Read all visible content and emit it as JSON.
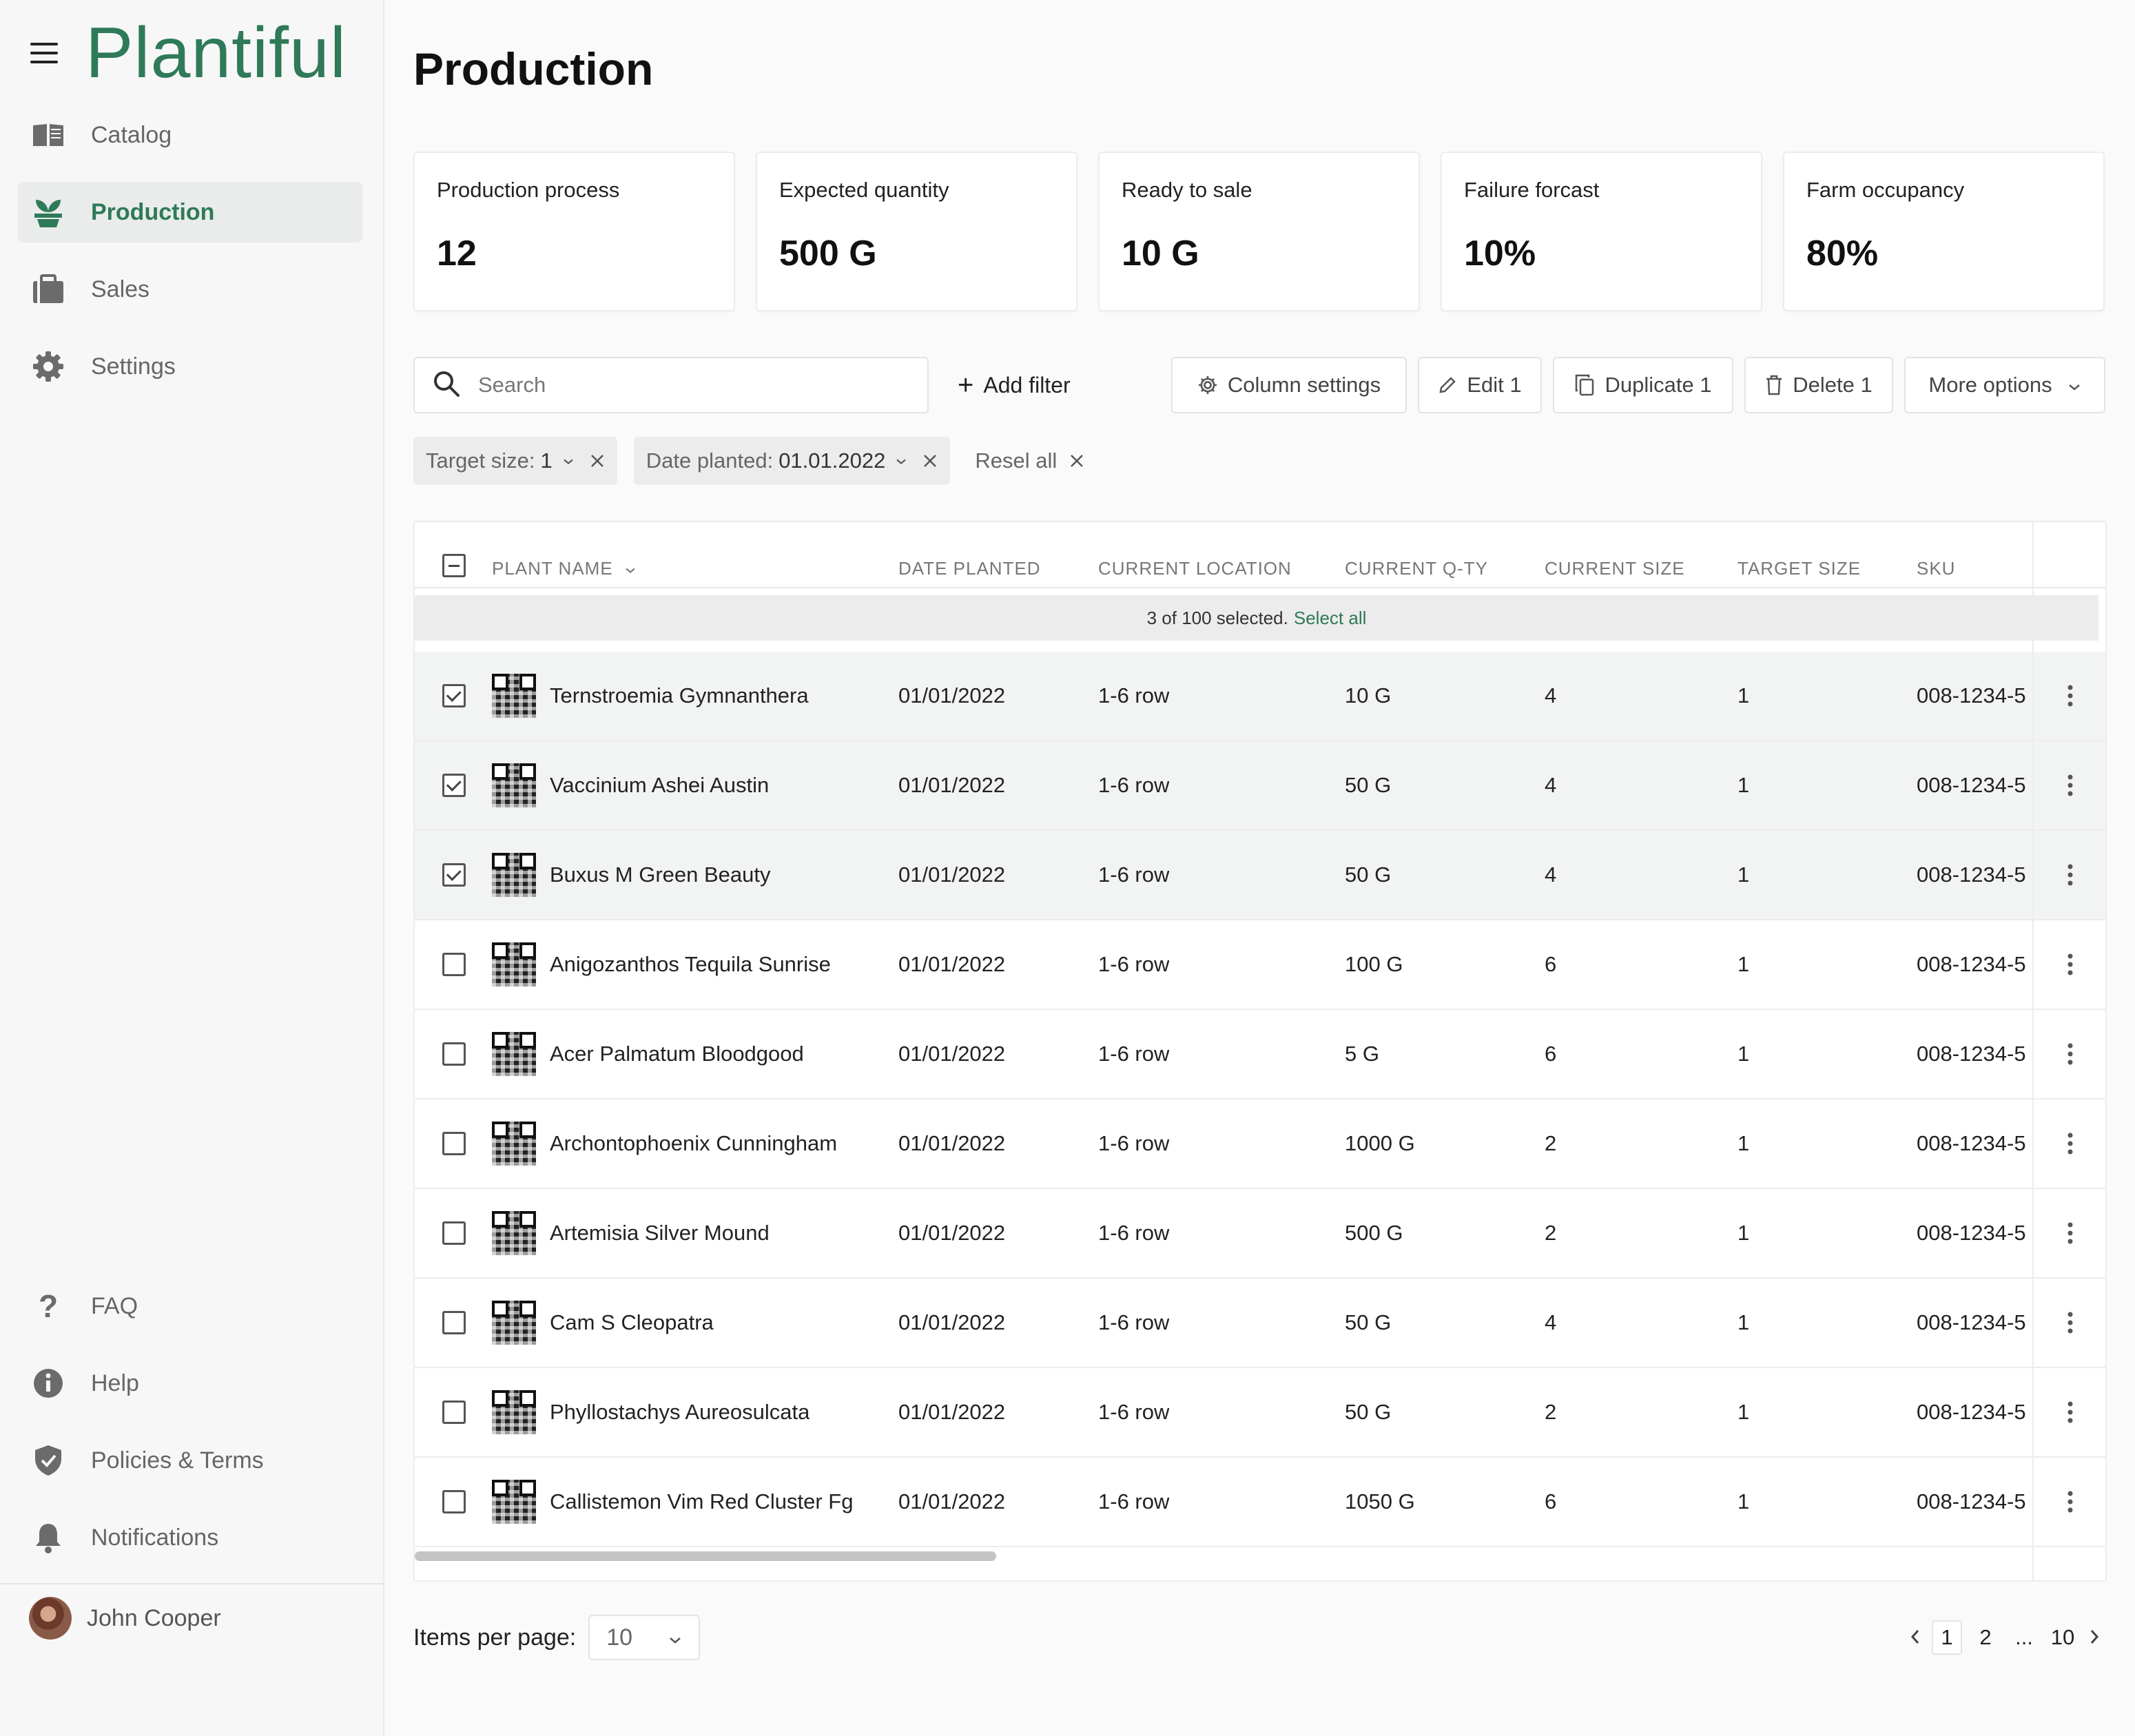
{
  "app": {
    "brand": "Plantiful"
  },
  "sidebar": {
    "items": [
      {
        "label": "Catalog",
        "icon": "book-icon"
      },
      {
        "label": "Production",
        "icon": "sprout-icon",
        "active": true
      },
      {
        "label": "Sales",
        "icon": "briefcase-icon"
      },
      {
        "label": "Settings",
        "icon": "gear-icon"
      }
    ],
    "bottom_items": [
      {
        "label": "FAQ",
        "icon": "question-icon"
      },
      {
        "label": "Help",
        "icon": "info-icon"
      },
      {
        "label": "Policies & Terms",
        "icon": "shield-icon"
      },
      {
        "label": "Notifications",
        "icon": "bell-icon"
      }
    ],
    "user": {
      "name": "John Cooper"
    }
  },
  "page": {
    "title": "Production"
  },
  "stats": [
    {
      "label": "Production process",
      "value": "12"
    },
    {
      "label": "Expected quantity",
      "value": "500 G"
    },
    {
      "label": "Ready to sale",
      "value": "10 G"
    },
    {
      "label": "Failure forcast",
      "value": "10%"
    },
    {
      "label": "Farm occupancy",
      "value": "80%"
    }
  ],
  "toolbar": {
    "search_placeholder": "Search",
    "add_filter": "Add filter",
    "column_settings": "Column settings",
    "edit": "Edit 1",
    "duplicate": "Duplicate 1",
    "delete": "Delete 1",
    "more_options": "More options"
  },
  "filters": {
    "chips": [
      {
        "label": "Target size:",
        "value": "1"
      },
      {
        "label": "Date planted:",
        "value": "01.01.2022"
      }
    ],
    "reset": "Resel all"
  },
  "table": {
    "columns": [
      "PLANT NAME",
      "DATE PLANTED",
      "CURRENT LOCATION",
      "CURRENT Q-TY",
      "CURRENT SIZE",
      "TARGET SIZE",
      "SKU"
    ],
    "selection_text": "3 of 100 selected.",
    "select_all": "Select all",
    "rows": [
      {
        "name": "Ternstroemia Gymnanthera",
        "date": "01/01/2022",
        "location": "1-6 row",
        "qty": "10 G",
        "size": "4",
        "target": "1",
        "sku": "008-1234-5",
        "selected": true
      },
      {
        "name": "Vaccinium Ashei Austin",
        "date": "01/01/2022",
        "location": "1-6 row",
        "qty": "50 G",
        "size": "4",
        "target": "1",
        "sku": "008-1234-5",
        "selected": true
      },
      {
        "name": "Buxus M Green Beauty",
        "date": "01/01/2022",
        "location": "1-6 row",
        "qty": "50 G",
        "size": "4",
        "target": "1",
        "sku": "008-1234-5",
        "selected": true
      },
      {
        "name": "Anigozanthos Tequila Sunrise",
        "date": "01/01/2022",
        "location": "1-6 row",
        "qty": "100 G",
        "size": "6",
        "target": "1",
        "sku": "008-1234-5",
        "selected": false
      },
      {
        "name": "Acer Palmatum Bloodgood",
        "date": "01/01/2022",
        "location": "1-6 row",
        "qty": "5 G",
        "size": "6",
        "target": "1",
        "sku": "008-1234-5",
        "selected": false
      },
      {
        "name": "Archontophoenix Cunningham",
        "date": "01/01/2022",
        "location": "1-6 row",
        "qty": "1000 G",
        "size": "2",
        "target": "1",
        "sku": "008-1234-5",
        "selected": false
      },
      {
        "name": "Artemisia Silver Mound",
        "date": "01/01/2022",
        "location": "1-6 row",
        "qty": "500 G",
        "size": "2",
        "target": "1",
        "sku": "008-1234-5",
        "selected": false
      },
      {
        "name": "Cam S Cleopatra",
        "date": "01/01/2022",
        "location": "1-6 row",
        "qty": "50 G",
        "size": "4",
        "target": "1",
        "sku": "008-1234-5",
        "selected": false
      },
      {
        "name": "Phyllostachys Aureosulcata",
        "date": "01/01/2022",
        "location": "1-6 row",
        "qty": "50 G",
        "size": "2",
        "target": "1",
        "sku": "008-1234-5",
        "selected": false
      },
      {
        "name": "Callistemon Vim Red Cluster Fg",
        "date": "01/01/2022",
        "location": "1-6 row",
        "qty": "1050 G",
        "size": "6",
        "target": "1",
        "sku": "008-1234-5",
        "selected": false
      }
    ]
  },
  "footer": {
    "items_per_page_label": "Items per page:",
    "items_per_page_value": "10",
    "pages": [
      "1",
      "2",
      "...",
      "10"
    ],
    "current_page": "1"
  },
  "colors": {
    "accent": "#2f7a58",
    "selected_row": "#f2f4f3",
    "chip_bg": "#ececec"
  }
}
